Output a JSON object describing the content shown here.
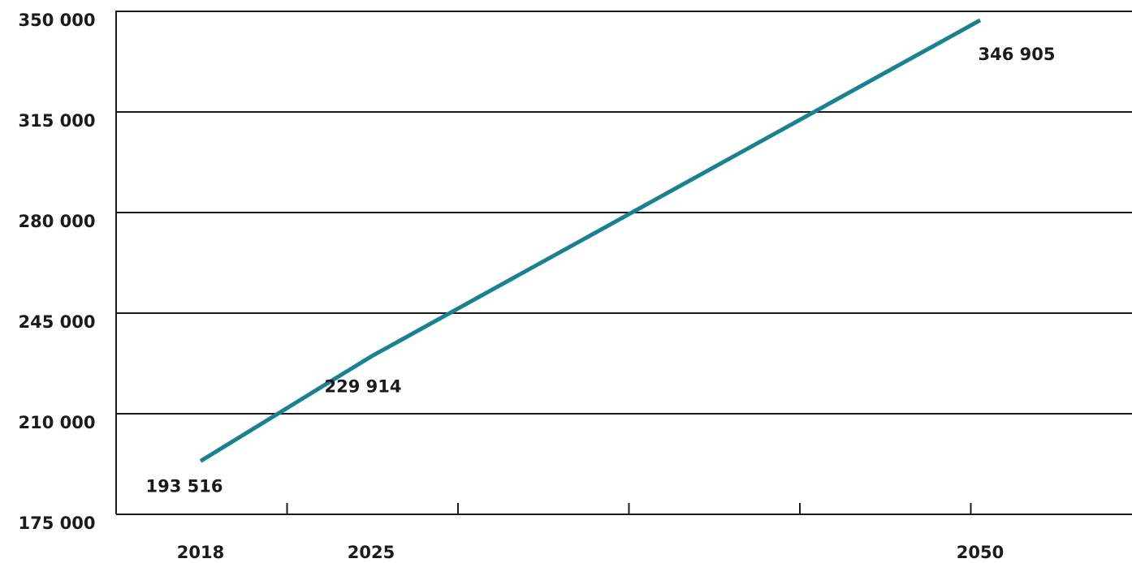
{
  "chart_data": {
    "type": "line",
    "title": "",
    "xlabel": "",
    "ylabel": "",
    "x": [
      2018,
      2025,
      2050
    ],
    "series": [
      {
        "values": [
          193516,
          229914,
          346905
        ]
      }
    ],
    "data_labels": [
      "193 516",
      "229 914",
      "346 905"
    ],
    "x_tick_labels": [
      "2018",
      "2025",
      "2050"
    ],
    "y_ticks": [
      175000,
      210000,
      245000,
      280000,
      315000,
      350000
    ],
    "y_tick_labels": [
      "175 000",
      "210 000",
      "245 000",
      "280 000",
      "315 000",
      "350 000"
    ],
    "ylim": [
      175000,
      350000
    ],
    "grid": true,
    "legend": "none",
    "line_color": "#1a8191"
  }
}
